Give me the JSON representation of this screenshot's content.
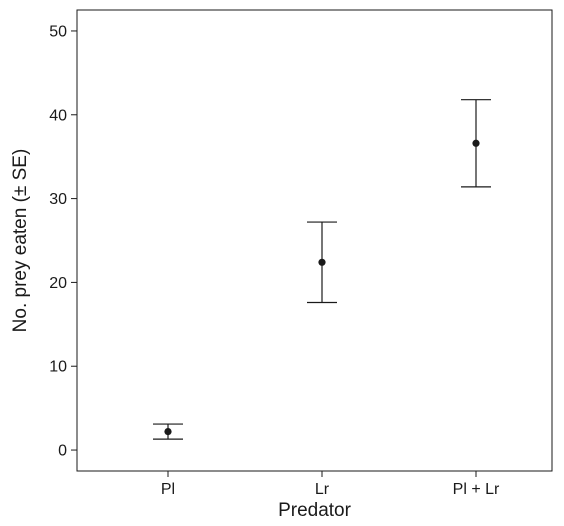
{
  "chart_data": {
    "type": "scatter",
    "title": "",
    "xlabel": "Predator",
    "ylabel": "No. prey eaten (± SE)",
    "categories": [
      "Pl",
      "Lr",
      "Pl + Lr"
    ],
    "series": [
      {
        "values": [
          2.2,
          22.4,
          36.6
        ],
        "se": [
          0.9,
          4.8,
          5.2
        ]
      }
    ],
    "ylim": [
      -2.5,
      52.5
    ],
    "yticks": [
      0,
      10,
      20,
      30,
      40,
      50
    ],
    "grid": false,
    "legend": "none",
    "colors": {
      "marker": "#1a1a1a",
      "axis": "#1a1a1a"
    }
  }
}
